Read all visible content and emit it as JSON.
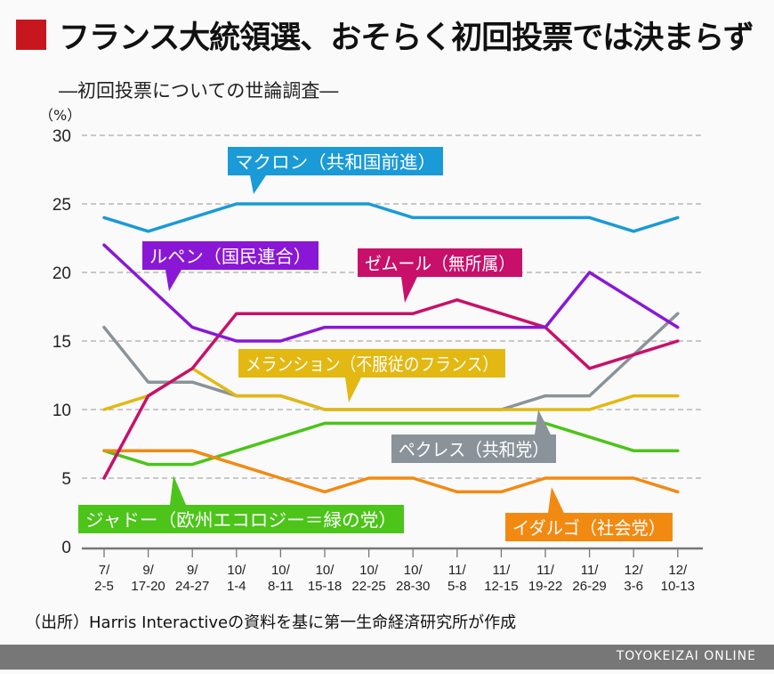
{
  "title": "フランス大統領選、おそらく初回投票では決まらず",
  "subtitle": "―初回投票についての世論調査―",
  "source": "（出所）Harris Interactiveの資料を基に第一生命経済研究所が作成",
  "footer": "TOYOKEIZAI ONLINE",
  "chart_data": {
    "type": "line",
    "ylabel": "（%）",
    "ylim": [
      0,
      30
    ],
    "yticks": [
      0,
      5,
      10,
      15,
      20,
      25,
      30
    ],
    "grid": true,
    "categories": [
      [
        "7/",
        "2-5"
      ],
      [
        "9/",
        "17-20"
      ],
      [
        "9/",
        "24-27"
      ],
      [
        "10/",
        "1-4"
      ],
      [
        "10/",
        "8-11"
      ],
      [
        "10/",
        "15-18"
      ],
      [
        "10/",
        "22-25"
      ],
      [
        "10/",
        "28-30"
      ],
      [
        "11/",
        "5-8"
      ],
      [
        "11/",
        "12-15"
      ],
      [
        "11/",
        "19-22"
      ],
      [
        "11/",
        "26-29"
      ],
      [
        "12/",
        "3-6"
      ],
      [
        "12/",
        "10-13"
      ]
    ],
    "series": [
      {
        "name": "マクロン（共和国前進）",
        "color": "#1a9ad6",
        "values": [
          24,
          23,
          24,
          25,
          25,
          25,
          25,
          24,
          24,
          24,
          24,
          24,
          23,
          24
        ]
      },
      {
        "name": "ルペン（国民連合）",
        "color": "#8a17d6",
        "values": [
          22,
          19,
          16,
          15,
          15,
          16,
          16,
          16,
          16,
          16,
          16,
          20,
          18,
          16
        ]
      },
      {
        "name": "ゼムール（無所属）",
        "color": "#c8106a",
        "values": [
          5,
          11,
          13,
          17,
          17,
          17,
          17,
          17,
          18,
          17,
          16,
          13,
          14,
          15
        ]
      },
      {
        "name": "ペクレス（共和党）",
        "color": "#8a9399",
        "values": [
          16,
          12,
          12,
          11,
          11,
          10,
          10,
          10,
          10,
          10,
          11,
          11,
          14,
          17
        ]
      },
      {
        "name": "メランション（不服従のフランス）",
        "color": "#e3b812",
        "values": [
          10,
          11,
          13,
          11,
          11,
          10,
          10,
          10,
          10,
          10,
          10,
          10,
          11,
          11
        ]
      },
      {
        "name": "ジャドー（欧州エコロジー＝緑の党）",
        "color": "#4cc41a",
        "values": [
          7,
          6,
          6,
          7,
          8,
          9,
          9,
          9,
          9,
          9,
          9,
          8,
          7,
          7
        ]
      },
      {
        "name": "イダルゴ（社会党）",
        "color": "#f28a12",
        "values": [
          7,
          7,
          7,
          6,
          5,
          4,
          5,
          5,
          4,
          4,
          5,
          5,
          5,
          4
        ]
      }
    ]
  }
}
